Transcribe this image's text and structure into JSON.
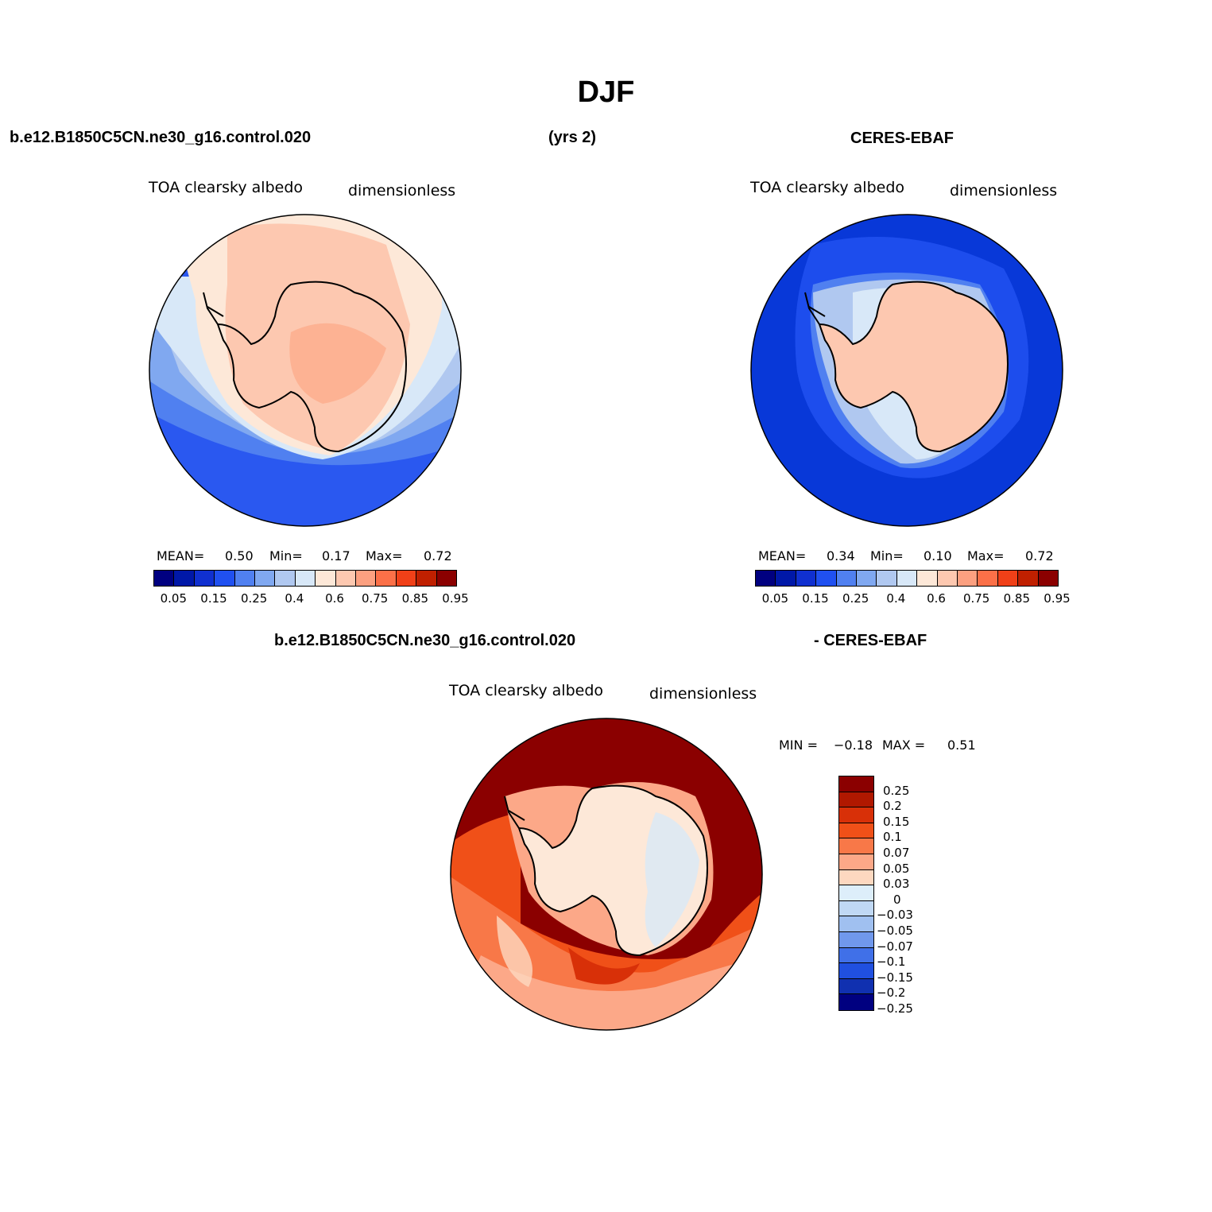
{
  "title": "DJF",
  "header": {
    "case_name": "b.e12.B1850C5CN.ne30_g16.control.020",
    "years": "(yrs 2)",
    "obs_name": "CERES-EBAF",
    "diff_case": "b.e12.B1850C5CN.ne30_g16.control.020",
    "diff_obs": "- CERES-EBAF"
  },
  "panels": {
    "model": {
      "variable": "TOA clearsky albedo",
      "units": "dimensionless",
      "stats": {
        "mean_label": "MEAN=",
        "mean": "0.50",
        "min_label": "Min=",
        "min": "0.17",
        "max_label": "Max=",
        "max": "0.72"
      }
    },
    "obs": {
      "variable": "TOA clearsky albedo",
      "units": "dimensionless",
      "stats": {
        "mean_label": "MEAN=",
        "mean": "0.34",
        "min_label": "Min=",
        "min": "0.10",
        "max_label": "Max=",
        "max": "0.72"
      }
    },
    "diff": {
      "variable": "TOA clearsky albedo",
      "units": "dimensionless",
      "minmax": {
        "min_label": "MIN =",
        "min": "−0.18",
        "max_label": "MAX =",
        "max": "0.51"
      }
    }
  },
  "colorbar_main": {
    "colors": [
      "#000080",
      "#0018a8",
      "#1030d0",
      "#2050f0",
      "#5080f0",
      "#80a8f0",
      "#b0c8f0",
      "#d8e8f8",
      "#fde8d8",
      "#fdc8b0",
      "#fca080",
      "#fb7048",
      "#f04018",
      "#c02000",
      "#8b0000"
    ],
    "labels": [
      "0.05",
      "0.15",
      "0.25",
      "0.4",
      "0.6",
      "0.75",
      "0.85",
      "0.95"
    ]
  },
  "colorbar_diff": {
    "colors": [
      "#8b0000",
      "#b01800",
      "#d83008",
      "#f05018",
      "#f87848",
      "#fca888",
      "#fdd8c0",
      "#ddeefa",
      "#c0d8f4",
      "#a0c0f0",
      "#7098ec",
      "#4070e8",
      "#2050e0",
      "#1030b0",
      "#000080"
    ],
    "labels": [
      "0.25",
      "0.2",
      "0.15",
      "0.1",
      "0.07",
      "0.05",
      "0.03",
      "0",
      "−0.03",
      "−0.05",
      "−0.07",
      "−0.1",
      "−0.15",
      "−0.2",
      "−0.25"
    ]
  }
}
